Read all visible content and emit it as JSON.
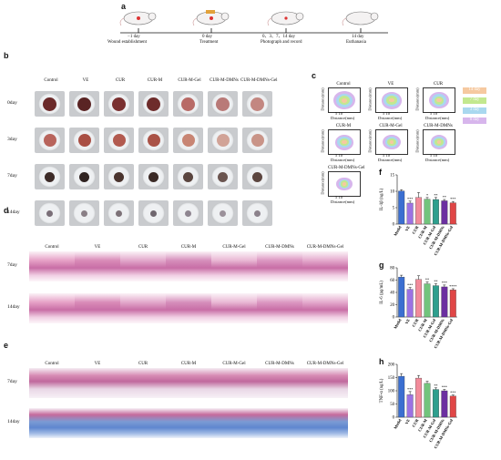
{
  "panel_a": {
    "label": "a",
    "timeline": [
      {
        "tick": "−1 day",
        "caption": "Wound establishment"
      },
      {
        "tick": "0 day",
        "caption": "Treatment"
      },
      {
        "tick": "0、3、7、14 day",
        "caption": "Photograph and record"
      },
      {
        "tick": "14 day",
        "caption": "Euthanasia"
      }
    ]
  },
  "groups": [
    "Control",
    "VE",
    "CUR",
    "CUR-M",
    "CUR-M-Gel",
    "CUR-M-DMNs",
    "CUR-M-DMNs-Gel"
  ],
  "panel_b": {
    "label": "b",
    "days": [
      "0day",
      "3day",
      "7day",
      "14day"
    ]
  },
  "panel_c": {
    "label": "c",
    "plots": [
      "Control",
      "VE",
      "CUR",
      "CUR-M",
      "CUR-M-Gel",
      "CUR-M-DMNs",
      "CUR-M-DMNs-Gel"
    ],
    "axis_label": "Distance(mm)",
    "ticks": "5  10",
    "legend": [
      "14 day",
      "7 day",
      "3 day",
      "0 day"
    ],
    "legend_colors": [
      "#f6c9a0",
      "#c3e88f",
      "#a9d8ef",
      "#d7b6ec"
    ]
  },
  "panel_d": {
    "label": "d",
    "days": [
      "7day",
      "14day"
    ]
  },
  "panel_e": {
    "label": "e",
    "days": [
      "7day",
      "14day"
    ]
  },
  "chart_data": [
    {
      "type": "bar",
      "panel": "f",
      "categories": [
        "Model",
        "VE",
        "CUR",
        "CUR-M",
        "CUR-M-Gel",
        "CUR-M-DMNs",
        "CUR-M-DMNs-Gel"
      ],
      "values": [
        10.1,
        6.4,
        8.1,
        7.6,
        7.5,
        7.1,
        6.5
      ],
      "errors": [
        0.4,
        0.6,
        1.5,
        0.5,
        0.6,
        0.4,
        0.4
      ],
      "significance": [
        "",
        "***",
        "",
        "*",
        "**",
        "**",
        "***"
      ],
      "ylabel": "IL-1β (ng/L)",
      "yticks": [
        0,
        5,
        10,
        15
      ],
      "ylim": [
        0,
        15
      ],
      "colors": [
        "#3b6fd1",
        "#9c72e3",
        "#f28b9a",
        "#72c47c",
        "#2e9f8e",
        "#6b2fa0",
        "#e04646"
      ]
    },
    {
      "type": "bar",
      "panel": "g",
      "categories": [
        "Model",
        "VE",
        "CUR",
        "CUR-M",
        "CUR-M-Gel",
        "CUR-M-DMNs",
        "CUR-M-DMNs-Gel"
      ],
      "values": [
        65,
        45,
        61,
        54,
        51,
        49,
        44
      ],
      "errors": [
        3,
        3,
        6,
        3,
        3,
        3,
        2
      ],
      "significance": [
        "",
        "***",
        "",
        "**",
        "**",
        "***",
        "****"
      ],
      "ylabel": "IL-6 (pg/mL)",
      "yticks": [
        0,
        20,
        40,
        60,
        80
      ],
      "ylim": [
        0,
        80
      ],
      "colors": [
        "#3b6fd1",
        "#9c72e3",
        "#f28b9a",
        "#72c47c",
        "#2e9f8e",
        "#6b2fa0",
        "#e04646"
      ]
    },
    {
      "type": "bar",
      "panel": "h",
      "categories": [
        "Model",
        "VE",
        "CUR",
        "CUR-M",
        "CUR-M-Gel",
        "CUR-M-DMNs",
        "CUR-M-DMNs-Gel"
      ],
      "values": [
        155,
        85,
        148,
        128,
        105,
        100,
        80
      ],
      "errors": [
        10,
        12,
        10,
        8,
        6,
        5,
        4
      ],
      "significance": [
        "",
        "***",
        "",
        "",
        "**",
        "***",
        "***"
      ],
      "ylabel": "TNF-α (ng/L)",
      "yticks": [
        0,
        50,
        100,
        150,
        200
      ],
      "ylim": [
        0,
        200
      ],
      "colors": [
        "#3b6fd1",
        "#9c72e3",
        "#f28b9a",
        "#72c47c",
        "#2e9f8e",
        "#6b2fa0",
        "#e04646"
      ]
    }
  ]
}
